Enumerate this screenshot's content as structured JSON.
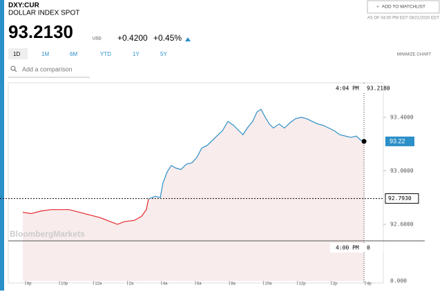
{
  "header": {
    "symbol": "DXY:CUR",
    "name": "DOLLAR INDEX SPOT",
    "price": "93.2130",
    "currency": "USD",
    "change": "+0.4200",
    "change_pct": "+0.45%",
    "watchlist": "ADD TO WATCHLIST",
    "as_of": "AS OF 04:00 PM EDT 08/21/2020 EDT"
  },
  "tabs": [
    "1D",
    "1M",
    "6M",
    "YTD",
    "1Y",
    "5Y"
  ],
  "minimize": "MINIMIZE CHART",
  "comparison_placeholder": "Add a comparison",
  "watermark": "BloombergMarkets",
  "chart_data": {
    "type": "line",
    "xlim": [
      -0.2,
      20.1
    ],
    "xticks": [
      {
        "value": 0,
        "label": "8p"
      },
      {
        "value": 2,
        "label": "10p"
      },
      {
        "value": 4,
        "label": "12a"
      },
      {
        "value": 6,
        "label": "2a"
      },
      {
        "value": 8,
        "label": "4a"
      },
      {
        "value": 10,
        "label": "6a"
      },
      {
        "value": 12,
        "label": "8a"
      },
      {
        "value": 14,
        "label": "10a"
      },
      {
        "value": 16,
        "label": "12p"
      },
      {
        "value": 18,
        "label": "2p"
      },
      {
        "value": 20,
        "label": "4p"
      }
    ],
    "ylim": [
      92.177,
      93.658
    ],
    "yticks": [
      {
        "value": 93.4,
        "label": "93.4000"
      },
      {
        "value": 93.0,
        "label": "93.0000"
      },
      {
        "value": 92.6,
        "label": "92.6000"
      }
    ],
    "baseline_label": "0.000",
    "area_color": "#f8ecec",
    "series": [
      {
        "name": "overnight",
        "color": "#e5252a",
        "x": [
          -0.16,
          0.33,
          0.93,
          1.54,
          2.15,
          2.56,
          3.17,
          3.78,
          4.39,
          5.0,
          5.41,
          5.81,
          6.42,
          6.83,
          7.11,
          7.24
        ],
        "values": [
          92.69,
          92.68,
          92.7,
          92.71,
          92.71,
          92.71,
          92.69,
          92.67,
          92.65,
          92.62,
          92.6,
          92.62,
          92.63,
          92.66,
          92.71,
          92.79
        ]
      },
      {
        "name": "session",
        "color": "#2b8fc8",
        "x": [
          7.24,
          7.64,
          7.93,
          8.09,
          8.33,
          8.58,
          8.86,
          9.15,
          9.47,
          9.8,
          10.08,
          10.37,
          10.69,
          11.02,
          11.34,
          11.59,
          11.91,
          12.24,
          12.56,
          12.8,
          13.05,
          13.37,
          13.62,
          13.86,
          14.11,
          14.35,
          14.59,
          14.92,
          15.24,
          15.57,
          15.89,
          16.22,
          16.54,
          16.87,
          17.2,
          17.52,
          17.85,
          18.17,
          18.5,
          18.82,
          19.15,
          19.47,
          19.72,
          19.92
        ],
        "values": [
          92.79,
          92.81,
          92.8,
          92.91,
          92.99,
          93.04,
          93.02,
          93.01,
          93.05,
          93.06,
          93.1,
          93.17,
          93.19,
          93.23,
          93.27,
          93.3,
          93.37,
          93.34,
          93.3,
          93.27,
          93.32,
          93.37,
          93.44,
          93.46,
          93.4,
          93.35,
          93.32,
          93.35,
          93.32,
          93.36,
          93.39,
          93.4,
          93.39,
          93.37,
          93.35,
          93.34,
          93.32,
          93.3,
          93.27,
          93.26,
          93.25,
          93.26,
          93.23,
          93.22
        ]
      }
    ],
    "last": {
      "x": 19.92,
      "value": 93.22,
      "color": "#2b8fc8"
    },
    "prev_close": {
      "value": 92.793,
      "label": "92.7930"
    },
    "crosshair": {
      "time": "4:04 PM",
      "value": {
        "value": 93.218,
        "label": "93.2180"
      },
      "bottom_time": "4:00 PM",
      "bottom_value": "0"
    }
  }
}
